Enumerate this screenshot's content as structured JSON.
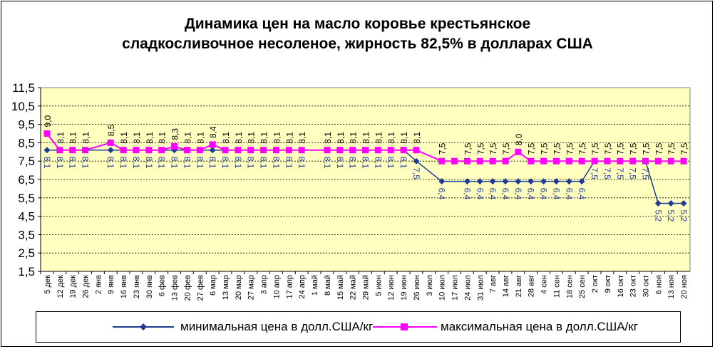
{
  "chart_data": {
    "type": "line",
    "title_line1": "Динамика цен на масло коровье крестьянское",
    "title_line2": "сладкосливочное несоленое, жирность 82,5%  в долларах США",
    "x": [
      "5 дек",
      "12 дек",
      "19 дек",
      "26 дек",
      "2 янв",
      "9 янв",
      "16 янв",
      "23 янв",
      "30 янв",
      "6 фев",
      "13 фев",
      "20 фев",
      "27 фев",
      "6 мар",
      "13 мар",
      "20 мар",
      "27 мар",
      "3 апр",
      "10 апр",
      "17 апр",
      "24 апр",
      "1 май",
      "8 май",
      "15 май",
      "22 май",
      "29 май",
      "5 июн",
      "12 июн",
      "19 июн",
      "26 июн",
      "3 июл",
      "10 июл",
      "17 июл",
      "24 июл",
      "31 июл",
      "7 авг",
      "14 авг",
      "21 авг",
      "28 авг",
      "4 сен",
      "11 сен",
      "18 сен",
      "25 сен",
      "2 окт",
      "9 окт",
      "16 окт",
      "23 окт",
      "30 окт",
      "6 ноя",
      "13 ноя",
      "20 ноя"
    ],
    "y_ticks": [
      "1,5",
      "2,5",
      "3,5",
      "4,5",
      "5,5",
      "6,5",
      "7,5",
      "8,5",
      "9,5",
      "10,5",
      "11,5"
    ],
    "ylim": [
      1.5,
      11.5
    ],
    "grid": true,
    "legend_position": "bottom",
    "series": [
      {
        "name": "минимальная  цена  в долл.США/кг",
        "color": "#1f3c96",
        "marker": "diamond",
        "values": [
          8.1,
          8.1,
          8.1,
          8.1,
          null,
          8.1,
          8.1,
          8.1,
          8.1,
          8.1,
          8.1,
          8.1,
          8.1,
          8.1,
          8.1,
          8.1,
          8.1,
          8.1,
          8.1,
          8.1,
          8.1,
          null,
          8.1,
          8.1,
          8.1,
          8.1,
          8.1,
          8.1,
          8.1,
          7.5,
          null,
          6.4,
          null,
          6.4,
          6.4,
          6.4,
          6.4,
          6.4,
          6.4,
          6.4,
          6.4,
          6.4,
          6.4,
          7.5,
          7.5,
          7.5,
          7.5,
          7.5,
          5.2,
          5.2,
          5.2
        ],
        "labels": [
          "8,1",
          "8,1",
          "8,1",
          "8,1",
          "",
          "8,1",
          "8,1",
          "8,1",
          "8,1",
          "8,1",
          "8,1",
          "8,1",
          "8,1",
          "8,1",
          "8,1",
          "8,1",
          "8,1",
          "8,1",
          "8,1",
          "8,1",
          "8,1",
          "",
          "8,1",
          "8,1",
          "8,1",
          "8,1",
          "8,1",
          "8,1",
          "8,1",
          "7,5",
          "",
          "6,4",
          "",
          "6,4",
          "6,4",
          "6,4",
          "6,4",
          "6,4",
          "6,4",
          "6,4",
          "6,4",
          "6,4",
          "6,4",
          "7,5",
          "7,5",
          "7,5",
          "7,5",
          "7,5",
          "5,2",
          "5,2",
          "5,2"
        ]
      },
      {
        "name": "максимальная  цена  в долл.США/кг",
        "color": "#ff00ff",
        "marker": "square",
        "values": [
          9.0,
          8.1,
          8.1,
          8.1,
          null,
          8.5,
          8.1,
          8.1,
          8.1,
          8.1,
          8.3,
          8.1,
          8.1,
          8.4,
          8.1,
          8.1,
          8.1,
          8.1,
          8.1,
          8.1,
          8.1,
          null,
          8.1,
          8.1,
          8.1,
          8.1,
          8.1,
          8.1,
          8.1,
          8.1,
          null,
          7.5,
          7.5,
          7.5,
          7.5,
          7.5,
          7.5,
          8.0,
          7.5,
          7.5,
          7.5,
          7.5,
          7.5,
          7.5,
          7.5,
          7.5,
          7.5,
          7.5,
          7.5,
          7.5,
          7.5
        ],
        "labels": [
          "9,0",
          "8,1",
          "8,1",
          "8,1",
          "",
          "8,5",
          "8,1",
          "8,1",
          "8,1",
          "8,1",
          "8,3",
          "8,1",
          "8,1",
          "8,4",
          "8,1",
          "8,1",
          "8,1",
          "8,1",
          "8,1",
          "8,1",
          "8,1",
          "",
          "8,1",
          "8,1",
          "8,1",
          "8,1",
          "8,1",
          "8,1",
          "8,1",
          "8,1",
          "",
          "7,5",
          "",
          "7,5",
          "7,5",
          "7,5",
          "7,5",
          "8,0",
          "7,5",
          "7,5",
          "7,5",
          "7,5",
          "7,5",
          "7,5",
          "7,5",
          "7,5",
          "7,5",
          "7,5",
          "7,5",
          "7,5",
          "7,5"
        ]
      }
    ]
  }
}
